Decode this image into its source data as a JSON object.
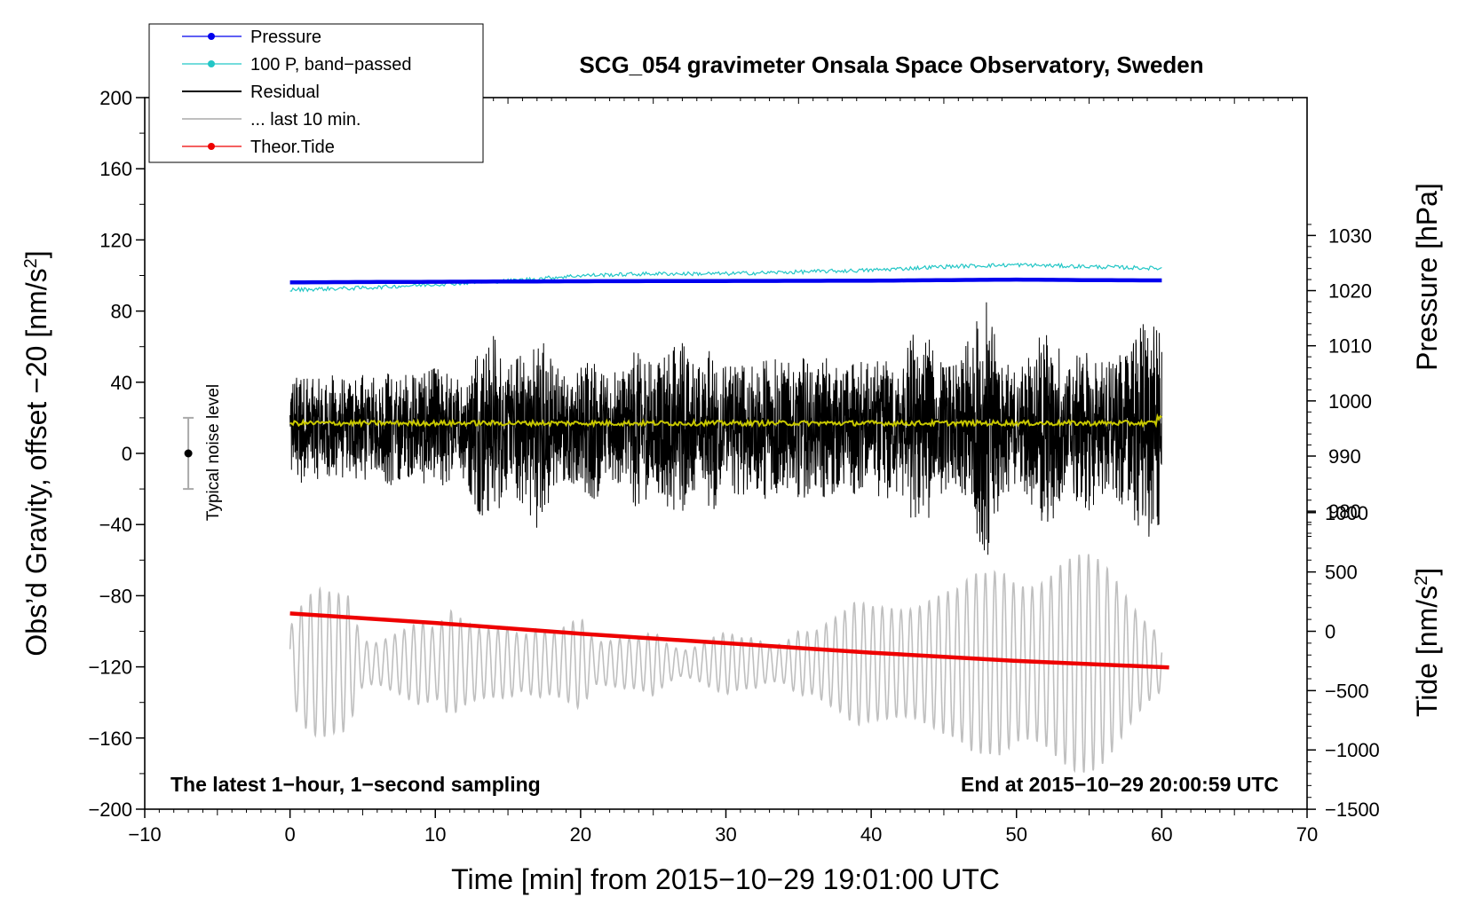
{
  "chart_data": {
    "type": "line",
    "title": "SCG_054 gravimeter Onsala Space Observatory, Sweden",
    "xlabel": "Time [min] from 2015−10−29 19:01:00 UTC",
    "ylabel_left_prefix": "Obs’d Gravity, offset −20 [nm/s",
    "ylabel_left_suffix": "]",
    "ylabel_right_pressure": "Pressure [hPa]",
    "ylabel_right_tide_prefix": "Tide [nm/s",
    "ylabel_right_tide_suffix": "]",
    "superscript": "2",
    "xlim": [
      -10,
      70
    ],
    "ylim": [
      -200,
      200
    ],
    "x_ticks": [
      {
        "v": -10,
        "label": "−10"
      },
      {
        "v": 0,
        "label": "0"
      },
      {
        "v": 10,
        "label": "10"
      },
      {
        "v": 20,
        "label": "20"
      },
      {
        "v": 30,
        "label": "30"
      },
      {
        "v": 40,
        "label": "40"
      },
      {
        "v": 50,
        "label": "50"
      },
      {
        "v": 60,
        "label": "60"
      },
      {
        "v": 70,
        "label": "70"
      }
    ],
    "y_ticks": [
      {
        "v": 200,
        "label": "200"
      },
      {
        "v": 160,
        "label": "160"
      },
      {
        "v": 120,
        "label": "120"
      },
      {
        "v": 80,
        "label": "80"
      },
      {
        "v": 40,
        "label": "40"
      },
      {
        "v": 0,
        "label": "0"
      },
      {
        "v": -40,
        "label": "−40"
      },
      {
        "v": -80,
        "label": "−80"
      },
      {
        "v": -120,
        "label": "−120"
      },
      {
        "v": -160,
        "label": "−160"
      },
      {
        "v": -200,
        "label": "−200"
      }
    ],
    "pressure_axis": {
      "y_at_1030": 122.5,
      "units_per_hpa": 3.1,
      "ticks": [
        {
          "v": 1030,
          "label": "1030"
        },
        {
          "v": 1020,
          "label": "1020"
        },
        {
          "v": 1010,
          "label": "1010"
        },
        {
          "v": 1000,
          "label": "1000"
        },
        {
          "v": 990,
          "label": "990"
        },
        {
          "v": 980,
          "label": "980"
        }
      ]
    },
    "tide_axis": {
      "y_at_0": -100,
      "units_per_nm": 0.0667,
      "ticks": [
        {
          "v": 1000,
          "label": "1000"
        },
        {
          "v": 500,
          "label": "500"
        },
        {
          "v": 0,
          "label": "0"
        },
        {
          "v": -500,
          "label": "−500"
        },
        {
          "v": -1000,
          "label": "−1000"
        },
        {
          "v": -1500,
          "label": "−1500"
        }
      ]
    },
    "series": [
      {
        "name": "Pressure",
        "color": "#0000ee",
        "style": "line-dot",
        "x": [
          0,
          10,
          20,
          30,
          40,
          45,
          50,
          55,
          60
        ],
        "y_hpa": [
          1021.5,
          1021.6,
          1021.7,
          1021.75,
          1021.8,
          1021.9,
          1022.0,
          1021.9,
          1021.85
        ]
      },
      {
        "name": "100 P, band−passed",
        "color": "#22c6c6",
        "style": "line-dot",
        "x": [
          0,
          5,
          10,
          15,
          20,
          25,
          30,
          35,
          40,
          45,
          50,
          55,
          60
        ],
        "y": [
          92,
          93,
          95,
          97,
          100,
          101,
          101,
          102,
          103,
          105,
          106,
          105,
          104
        ]
      },
      {
        "name": "Residual",
        "color": "#000000",
        "style": "line",
        "x": [
          0,
          60
        ],
        "center": 14,
        "envelope": [
          30,
          32,
          28,
          30,
          26,
          30,
          28,
          32,
          30,
          30,
          34,
          30,
          28,
          48,
          52,
          34,
          42,
          56,
          38,
          28,
          34,
          40,
          30,
          36,
          46,
          34,
          44,
          48,
          32,
          46,
          42,
          38,
          34,
          42,
          36,
          42,
          34,
          40,
          30,
          38,
          36,
          40,
          34,
          56,
          50,
          34,
          36,
          56,
          72,
          40,
          30,
          42,
          58,
          44,
          40,
          46,
          36,
          40,
          50,
          62,
          52
        ]
      },
      {
        "name": "... last 10 min.",
        "color": "#bfbfbf",
        "style": "line",
        "x": [
          0,
          60
        ],
        "center": -118,
        "envelope": [
          24,
          38,
          42,
          40,
          42,
          16,
          16,
          22,
          26,
          28,
          20,
          30,
          24,
          22,
          24,
          28,
          22,
          26,
          20,
          22,
          26,
          12,
          14,
          18,
          20,
          26,
          14,
          8,
          10,
          14,
          18,
          16,
          18,
          14,
          16,
          24,
          20,
          24,
          28,
          36,
          36,
          40,
          42,
          44,
          46,
          46,
          44,
          50,
          52,
          58,
          56,
          60,
          66,
          72,
          70,
          64,
          56,
          46,
          36,
          28,
          22
        ]
      },
      {
        "name": "Theor.Tide",
        "color": "#ee0000",
        "style": "line-dot",
        "x": [
          0,
          10,
          20,
          30,
          40,
          50,
          60.5
        ],
        "y_tide": [
          150,
          70,
          -20,
          -100,
          -180,
          -250,
          -305
        ]
      },
      {
        "name": "",
        "color": "#c8c800",
        "style": "line",
        "x": [
          0,
          60
        ],
        "center": 17
      }
    ],
    "legend": [
      {
        "label": "Pressure",
        "color": "#0000ee",
        "marker": "dot"
      },
      {
        "label": "100 P, band−passed",
        "color": "#22c6c6",
        "marker": "dot"
      },
      {
        "label": "Residual",
        "color": "#000000",
        "marker": "none"
      },
      {
        "label": "... last 10 min.",
        "color": "#bfbfbf",
        "marker": "none"
      },
      {
        "label": "Theor.Tide",
        "color": "#ee0000",
        "marker": "dot"
      }
    ],
    "legend_position": "top-left",
    "noise_level": {
      "label": "Typical noise level",
      "x": -7,
      "center": 0,
      "half_range": 20
    },
    "annotations": {
      "bottom_left": "The latest 1−hour, 1−second sampling",
      "bottom_right": "End at 2015−10−29 20:00:59 UTC"
    }
  }
}
